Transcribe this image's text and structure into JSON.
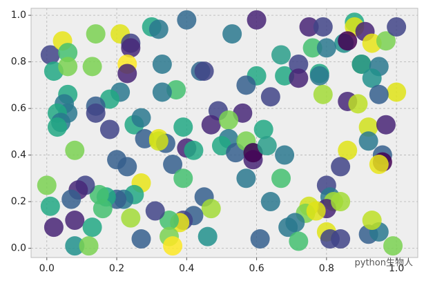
{
  "chart_data": {
    "type": "scatter",
    "xlim": [
      -0.045,
      1.061
    ],
    "ylim": [
      -0.04,
      1.03
    ],
    "xticks": [
      {
        "value": 0,
        "label": "0.0"
      },
      {
        "value": 0.2,
        "label": "0.2"
      },
      {
        "value": 0.4,
        "label": "0.4"
      },
      {
        "value": 0.6,
        "label": "0.6"
      },
      {
        "value": 0.8,
        "label": "0.8"
      },
      {
        "value": 1,
        "label": "1.0"
      }
    ],
    "yticks": [
      {
        "value": 0,
        "label": "0.0"
      },
      {
        "value": 0.2,
        "label": "0.2"
      },
      {
        "value": 0.4,
        "label": "0.4"
      },
      {
        "value": 0.6,
        "label": "0.6"
      },
      {
        "value": 0.8,
        "label": "0.8"
      },
      {
        "value": 1,
        "label": "1.0"
      }
    ],
    "grid": true,
    "background": "#eeeeee",
    "opacity": 0.85,
    "watermark": "python生物人",
    "x": [
      0.01,
      0.045,
      0.06,
      0.02,
      0.06,
      0.13,
      0.14,
      0.21,
      0.24,
      0.24,
      0.3,
      0.32,
      0.4,
      0.53,
      0.6,
      0.75,
      0.79,
      0.85,
      0.88,
      0.88,
      0.91,
      0.86,
      0.93,
      0.97,
      1.0,
      0.23,
      0.23,
      0.33,
      0.44,
      0.45,
      0.6,
      0.57,
      0.67,
      0.68,
      0.72,
      0.72,
      0.76,
      0.8,
      0.78,
      0.78,
      0.9,
      0.9,
      0.95,
      0.93,
      1.0,
      0.95,
      0.79,
      0.86,
      0.89,
      0.64,
      0.56,
      0.49,
      0.37,
      0.33,
      0.21,
      0.18,
      0.14,
      0.14,
      0.06,
      0.05,
      0.06,
      0.03,
      0.04,
      0.03,
      0.18,
      0.25,
      0.27,
      0.28,
      0.32,
      0.34,
      0.32,
      0.39,
      0.47,
      0.52,
      0.52,
      0.5,
      0.54,
      0.57,
      0.59,
      0.59,
      0.59,
      0.62,
      0.63,
      0.68,
      0.4,
      0.42,
      0.36,
      0.23,
      0.2,
      0.08,
      0.86,
      0.92,
      0.97,
      0.92,
      0.96,
      0.96,
      0.95,
      0.84,
      0.8,
      0.81,
      0.82,
      0.8,
      0.75,
      0.74,
      0.67,
      0.64,
      0.57,
      0.39,
      0.45,
      0.47,
      0.42,
      0.39,
      0.38,
      0.35,
      0.31,
      0.27,
      0.25,
      0.24,
      0.22,
      0.2,
      0.17,
      0.15,
      0.11,
      0.09,
      0.07,
      0.0,
      0.01,
      0.02,
      0.08,
      0.08,
      0.13,
      0.12,
      0.16,
      0.27,
      0.35,
      0.36,
      0.46,
      0.61,
      0.69,
      0.71,
      0.72,
      0.77,
      0.8,
      0.81,
      0.84,
      0.92,
      0.95,
      0.93,
      0.99,
      0.84
    ],
    "y": [
      0.83,
      0.89,
      0.84,
      0.76,
      0.78,
      0.78,
      0.92,
      0.92,
      0.88,
      0.86,
      0.95,
      0.94,
      0.98,
      0.92,
      0.98,
      0.95,
      0.95,
      0.88,
      0.97,
      0.95,
      0.93,
      0.89,
      0.88,
      0.89,
      0.95,
      0.79,
      0.75,
      0.79,
      0.76,
      0.76,
      0.74,
      0.7,
      0.83,
      0.74,
      0.79,
      0.73,
      0.86,
      0.86,
      0.75,
      0.74,
      0.79,
      0.79,
      0.78,
      0.73,
      0.67,
      0.66,
      0.66,
      0.63,
      0.62,
      0.65,
      0.58,
      0.59,
      0.68,
      0.67,
      0.67,
      0.64,
      0.61,
      0.58,
      0.66,
      0.62,
      0.58,
      0.58,
      0.54,
      0.52,
      0.51,
      0.53,
      0.56,
      0.47,
      0.47,
      0.45,
      0.46,
      0.52,
      0.53,
      0.55,
      0.47,
      0.44,
      0.41,
      0.46,
      0.41,
      0.38,
      0.41,
      0.51,
      0.44,
      0.4,
      0.43,
      0.42,
      0.36,
      0.35,
      0.38,
      0.42,
      0.42,
      0.52,
      0.53,
      0.46,
      0.4,
      0.37,
      0.36,
      0.35,
      0.27,
      0.22,
      0.2,
      0.17,
      0.18,
      0.15,
      0.3,
      0.2,
      0.3,
      0.3,
      0.22,
      0.17,
      0.14,
      0.12,
      0.11,
      0.12,
      0.16,
      0.28,
      0.23,
      0.13,
      0.21,
      0.21,
      0.22,
      0.23,
      0.27,
      0.25,
      0.21,
      0.27,
      0.18,
      0.09,
      0.12,
      0.01,
      0.09,
      0.01,
      0.17,
      0.04,
      0.05,
      0.01,
      0.05,
      0.04,
      0.09,
      0.11,
      0.03,
      0.16,
      0.07,
      0.04,
      0.04,
      0.06,
      0.07,
      0.12,
      0.01,
      0.2
    ],
    "colors": [
      "#414487",
      "#e8e419",
      "#44bf70",
      "#22a884",
      "#7ad151",
      "#7ad151",
      "#7ad151",
      "#dfe318",
      "#414487",
      "#482878",
      "#22a884",
      "#2a788e",
      "#31688e",
      "#2a788e",
      "#482475",
      "#482475",
      "#414487",
      "#21918c",
      "#22a884",
      "#dfe318",
      "#482475",
      "#440154",
      "#e8e419",
      "#7ad151",
      "#414487",
      "#fde725",
      "#482475",
      "#2a788e",
      "#31688e",
      "#414487",
      "#22a884",
      "#355f8d",
      "#2a9d8a",
      "#22a884",
      "#414487",
      "#482475",
      "#44bf70",
      "#2a788e",
      "#22a884",
      "#2a788e",
      "#7ad151",
      "#21918c",
      "#2a788e",
      "#21918c",
      "#dfe318",
      "#355f8d",
      "#a2da37",
      "#482878",
      "#bddf26",
      "#414487",
      "#482878",
      "#414487",
      "#44bf70",
      "#2a788e",
      "#2a788e",
      "#22a884",
      "#355f8d",
      "#414487",
      "#22a884",
      "#2a788e",
      "#2a788e",
      "#22a884",
      "#2a788e",
      "#22a884",
      "#414487",
      "#22a884",
      "#2a788e",
      "#355f8d",
      "#e8e419",
      "#355f8d",
      "#d0e11c",
      "#22a884",
      "#482878",
      "#7ad151",
      "#2a788e",
      "#22a884",
      "#355f8d",
      "#7ad151",
      "#44bf70",
      "#482475",
      "#440154",
      "#22a884",
      "#2a9d8a",
      "#2a788e",
      "#482475",
      "#22a884",
      "#355f8d",
      "#355f8d",
      "#355f8d",
      "#7ad151",
      "#dfe318",
      "#d0e11c",
      "#482475",
      "#2a788e",
      "#355f8d",
      "#440154",
      "#e8e419",
      "#414487",
      "#414487",
      "#2a788e",
      "#a2da37",
      "#482475",
      "#d0e11c",
      "#7ad151",
      "#44bf70",
      "#2a788e",
      "#2a788e",
      "#44bf70",
      "#355f8d",
      "#a2da37",
      "#355f8d",
      "#414487",
      "#e8e419",
      "#44bf70",
      "#414487",
      "#e8e419",
      "#22a884",
      "#a2da37",
      "#2a788e",
      "#355f8d",
      "#22a884",
      "#44bf70",
      "#414487",
      "#482878",
      "#355f8d",
      "#7ad151",
      "#22a884",
      "#482475",
      "#482475",
      "#21918c",
      "#22a884",
      "#7ad151",
      "#44bf70",
      "#355f8d",
      "#7ad151",
      "#fde725",
      "#21918c",
      "#355f8d",
      "#2a788e",
      "#2a788e",
      "#44bf70",
      "#dfe318",
      "#dfe318",
      "#414487",
      "#414487",
      "#355f8d",
      "#2a788e",
      "#bddf26",
      "#7ad151",
      "#a2da37"
    ]
  }
}
